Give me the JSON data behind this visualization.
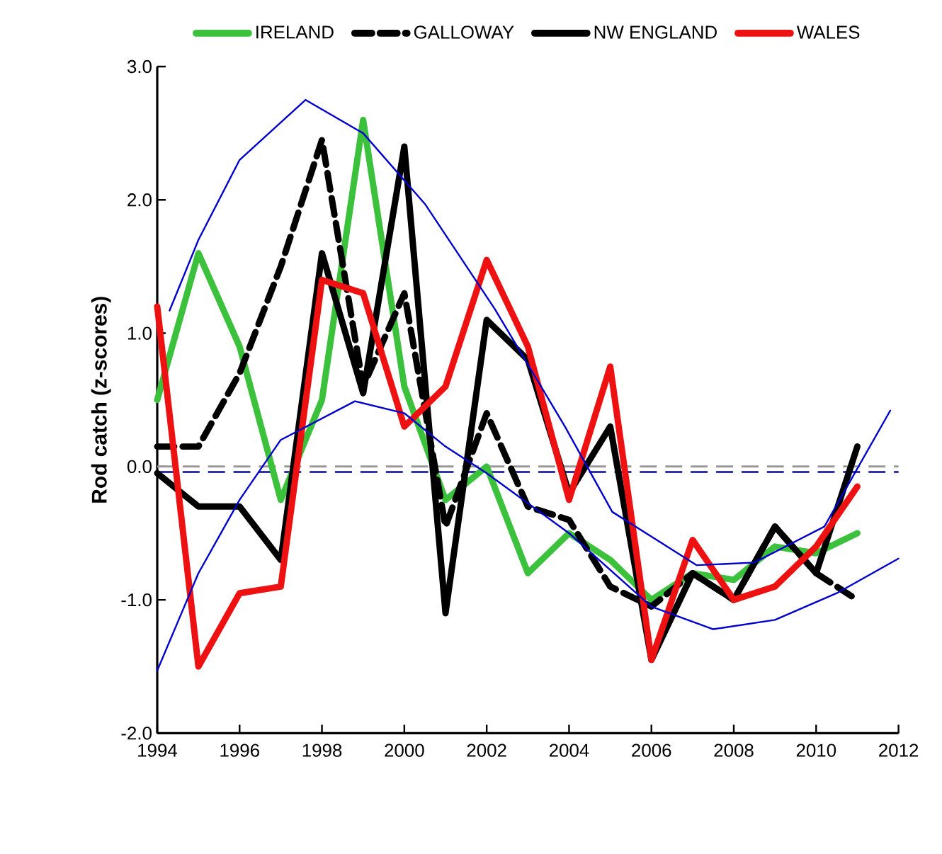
{
  "chart_data": {
    "type": "line",
    "ylabel": "Rod catch (z-scores)",
    "x": [
      1994,
      1995,
      1996,
      1997,
      1998,
      1999,
      2000,
      2001,
      2002,
      2003,
      2004,
      2005,
      2006,
      2007,
      2008,
      2009,
      2010,
      2011
    ],
    "series": [
      {
        "name": "IRELAND",
        "color": "#3cc13c",
        "line_style": "solid",
        "values": [
          0.5,
          1.6,
          0.9,
          -0.25,
          0.5,
          2.6,
          0.6,
          -0.25,
          0.0,
          -0.8,
          -0.5,
          -0.7,
          -1.0,
          -0.8,
          -0.85,
          -0.6,
          -0.65,
          -0.5
        ]
      },
      {
        "name": "GALLOWAY",
        "color": "#000000",
        "line_style": "dashed",
        "values": [
          0.15,
          0.15,
          0.7,
          1.5,
          2.45,
          0.6,
          1.3,
          -0.45,
          0.4,
          -0.3,
          -0.4,
          -0.9,
          -1.05,
          -0.8,
          -1.0,
          -0.45,
          -0.8,
          -1.0
        ]
      },
      {
        "name": "NW ENGLAND",
        "color": "#000000",
        "line_style": "solid",
        "values": [
          -0.05,
          -0.3,
          -0.3,
          -0.7,
          1.6,
          0.55,
          2.4,
          -1.1,
          1.1,
          0.8,
          -0.2,
          0.3,
          -1.45,
          -0.8,
          -1.0,
          -0.45,
          -0.8,
          0.15
        ]
      },
      {
        "name": "WALES",
        "color": "#ee1111",
        "line_style": "solid",
        "values": [
          1.2,
          -1.5,
          -0.95,
          -0.9,
          1.4,
          1.3,
          0.3,
          0.6,
          1.55,
          0.9,
          -0.25,
          0.75,
          -1.45,
          -0.55,
          -1.0,
          -0.9,
          -0.6,
          -0.15
        ]
      },
      {
        "color": "#0000cc",
        "line_style": "solid",
        "x": [
          1994.3,
          1995,
          1996,
          1997.6,
          1999,
          2000.5,
          2002.2,
          2003.9,
          2005.05,
          2007.1,
          2008.5,
          2010.2,
          2011.8
        ],
        "values": [
          1.17,
          1.7,
          2.3,
          2.75,
          2.5,
          1.97,
          1.18,
          0.3,
          -0.34,
          -0.74,
          -0.72,
          -0.45,
          0.42
        ]
      },
      {
        "color": "#0000cc",
        "line_style": "solid",
        "x": [
          1994,
          1995,
          1996,
          1997,
          1998.8,
          2000,
          2001,
          2002,
          2004,
          2006,
          2007.5,
          2009,
          2010.5,
          2012
        ],
        "values": [
          -1.53,
          -0.8,
          -0.25,
          0.2,
          0.49,
          0.4,
          0.15,
          -0.05,
          -0.5,
          -1.05,
          -1.22,
          -1.15,
          -0.95,
          -0.69
        ]
      }
    ],
    "xlim": [
      1994,
      2012
    ],
    "xticks": [
      1994,
      1996,
      1998,
      2000,
      2002,
      2004,
      2006,
      2008,
      2010,
      2012
    ],
    "ylim": [
      -2,
      3
    ],
    "yticks": [
      {
        "value": -2,
        "label": "-2.0"
      },
      {
        "value": -1,
        "label": "-1.0"
      },
      {
        "value": 0,
        "label": "0.0"
      },
      {
        "value": 1,
        "label": "1.0"
      },
      {
        "value": 2,
        "label": "2.0"
      },
      {
        "value": 3,
        "label": "3.0"
      }
    ],
    "ref_lines": [
      {
        "axis": "y",
        "value": 0,
        "color": "#999999",
        "line_style": "dashed"
      },
      {
        "axis": "y",
        "value": -0.04,
        "color": "#3333aa",
        "line_style": "dashed"
      }
    ],
    "grid": false,
    "legend": "top"
  }
}
